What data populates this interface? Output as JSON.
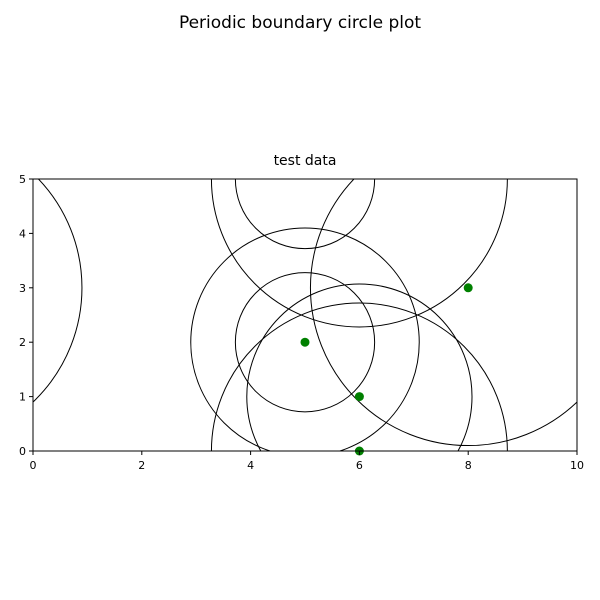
{
  "figure": {
    "suptitle": "Periodic boundary circle plot"
  },
  "chart_data": {
    "type": "scatter",
    "title": "test data",
    "xlabel": "",
    "ylabel": "",
    "xlim": [
      0,
      10
    ],
    "ylim": [
      0,
      5
    ],
    "xticks": [
      0,
      2,
      4,
      6,
      8,
      10
    ],
    "yticks": [
      0,
      1,
      2,
      3,
      4,
      5
    ],
    "grid": false,
    "point_color": "#008000",
    "circle_color": "#000000",
    "points": [
      {
        "x": 5,
        "y": 2
      },
      {
        "x": 6,
        "y": 1
      },
      {
        "x": 6,
        "y": 0
      },
      {
        "x": 8,
        "y": 3
      }
    ],
    "circles": [
      {
        "cx": 5,
        "cy": 2,
        "r": 1.28
      },
      {
        "cx": 5,
        "cy": 2,
        "r": 2.1
      },
      {
        "cx": 6,
        "cy": 1,
        "r": 2.07
      },
      {
        "cx": 6,
        "cy": 0,
        "r": 2.72
      },
      {
        "cx": 6,
        "cy": 5,
        "r": 2.72
      },
      {
        "cx": 5,
        "cy": 5,
        "r": 1.28
      },
      {
        "cx": 8,
        "cy": 3,
        "r": 2.9
      },
      {
        "cx": -2,
        "cy": 3,
        "r": 2.9
      }
    ]
  }
}
